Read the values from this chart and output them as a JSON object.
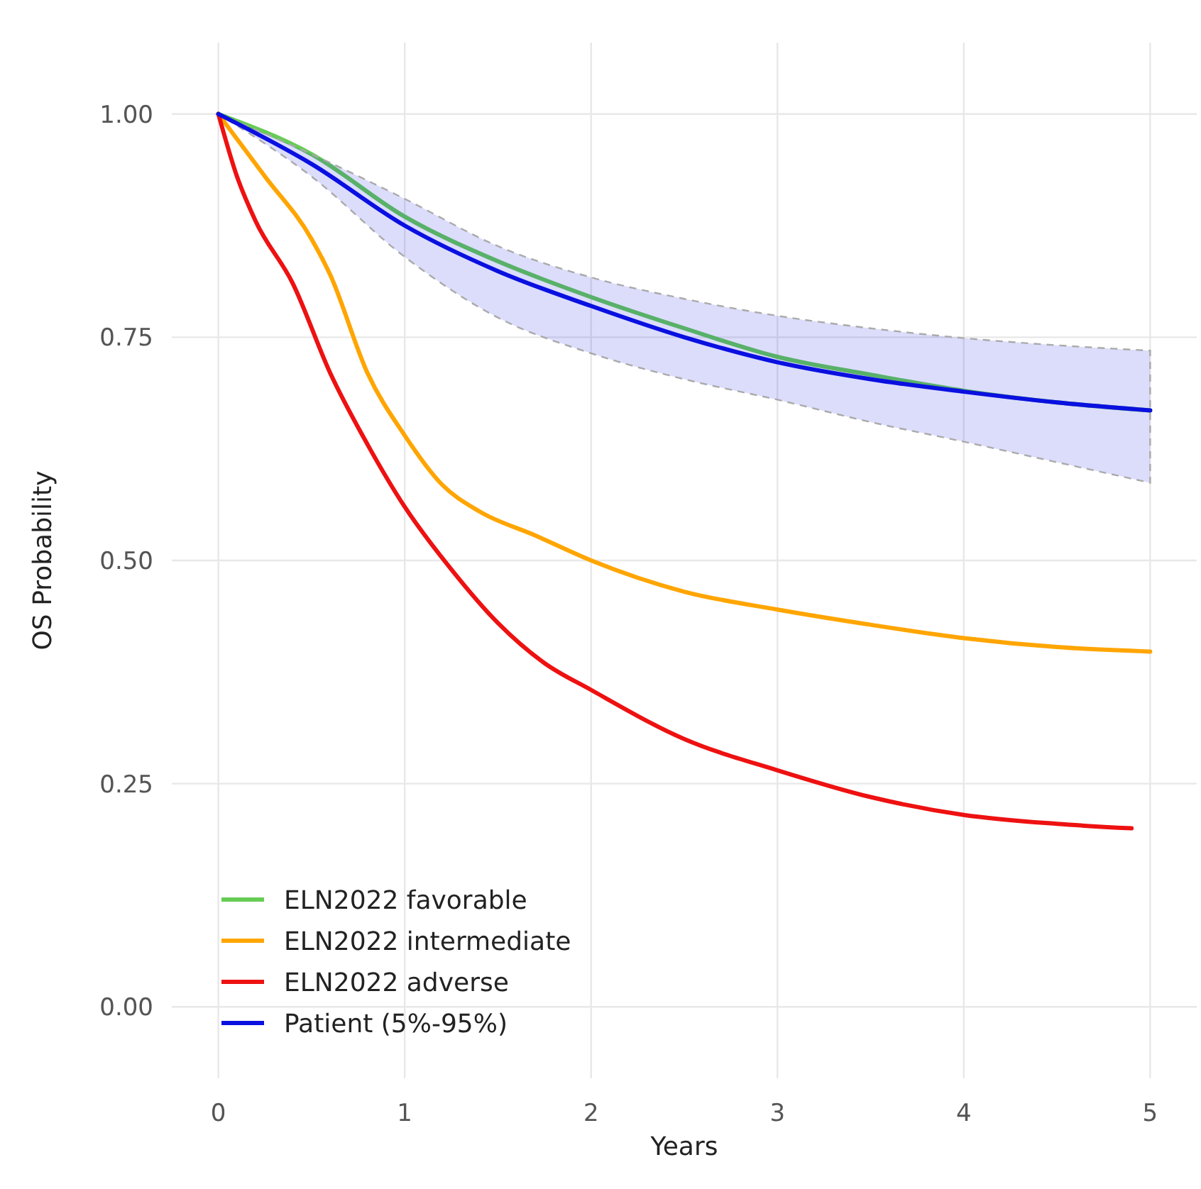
{
  "chart_data": {
    "type": "line",
    "xlabel": "Years",
    "ylabel": "OS Probability",
    "xlim": [
      -0.25,
      5.25
    ],
    "ylim": [
      -0.08,
      1.08
    ],
    "xticks": [
      0,
      1,
      2,
      3,
      4,
      5
    ],
    "yticks": [
      {
        "value": 0,
        "label": "0.00"
      },
      {
        "value": 0.25,
        "label": "0.25"
      },
      {
        "value": 0.5,
        "label": "0.50"
      },
      {
        "value": 0.75,
        "label": "0.75"
      },
      {
        "value": 1,
        "label": "1.00"
      }
    ],
    "grid": true,
    "legend": "bottom left",
    "line_style": "solid",
    "marker": "none",
    "series": [
      {
        "name": "ELN2022 favorable",
        "color": "#66cc55",
        "x": [
          0,
          0.5,
          1,
          1.5,
          2,
          2.5,
          3,
          3.5,
          4,
          4.5,
          5
        ],
        "values": [
          1,
          0.955,
          0.885,
          0.835,
          0.795,
          0.76,
          0.728,
          0.708,
          0.69,
          0.677,
          0.668
        ]
      },
      {
        "name": "ELN2022 intermediate",
        "color": "#ffa500",
        "x": [
          0,
          0.25,
          0.5,
          0.6,
          0.8,
          1,
          1.2,
          1.4,
          1.7,
          2,
          2.5,
          3,
          3.5,
          4,
          4.5,
          5
        ],
        "values": [
          1,
          0.93,
          0.86,
          0.82,
          0.71,
          0.64,
          0.585,
          0.555,
          0.528,
          0.5,
          0.465,
          0.445,
          0.428,
          0.413,
          0.403,
          0.398
        ]
      },
      {
        "name": "ELN2022 adverse",
        "color": "#ee1111",
        "x": [
          0,
          0.1,
          0.2,
          0.4,
          0.6,
          0.8,
          1,
          1.25,
          1.5,
          1.75,
          2,
          2.5,
          3,
          3.5,
          4,
          4.5,
          4.9
        ],
        "values": [
          1,
          0.93,
          0.88,
          0.81,
          0.71,
          0.63,
          0.56,
          0.49,
          0.43,
          0.385,
          0.355,
          0.3,
          0.265,
          0.235,
          0.215,
          0.205,
          0.2
        ]
      },
      {
        "name": "Patient (5%-95%)",
        "color": "#0a10e0",
        "x": [
          0,
          0.5,
          1,
          1.5,
          2,
          2.5,
          3,
          3.5,
          4,
          4.5,
          5
        ],
        "values": [
          1,
          0.944,
          0.875,
          0.824,
          0.785,
          0.75,
          0.722,
          0.703,
          0.689,
          0.677,
          0.668
        ],
        "lower": [
          1,
          0.93,
          0.84,
          0.772,
          0.732,
          0.703,
          0.68,
          0.655,
          0.633,
          0.61,
          0.587
        ],
        "upper": [
          1,
          0.955,
          0.905,
          0.852,
          0.817,
          0.793,
          0.774,
          0.76,
          0.749,
          0.741,
          0.735
        ]
      }
    ]
  }
}
